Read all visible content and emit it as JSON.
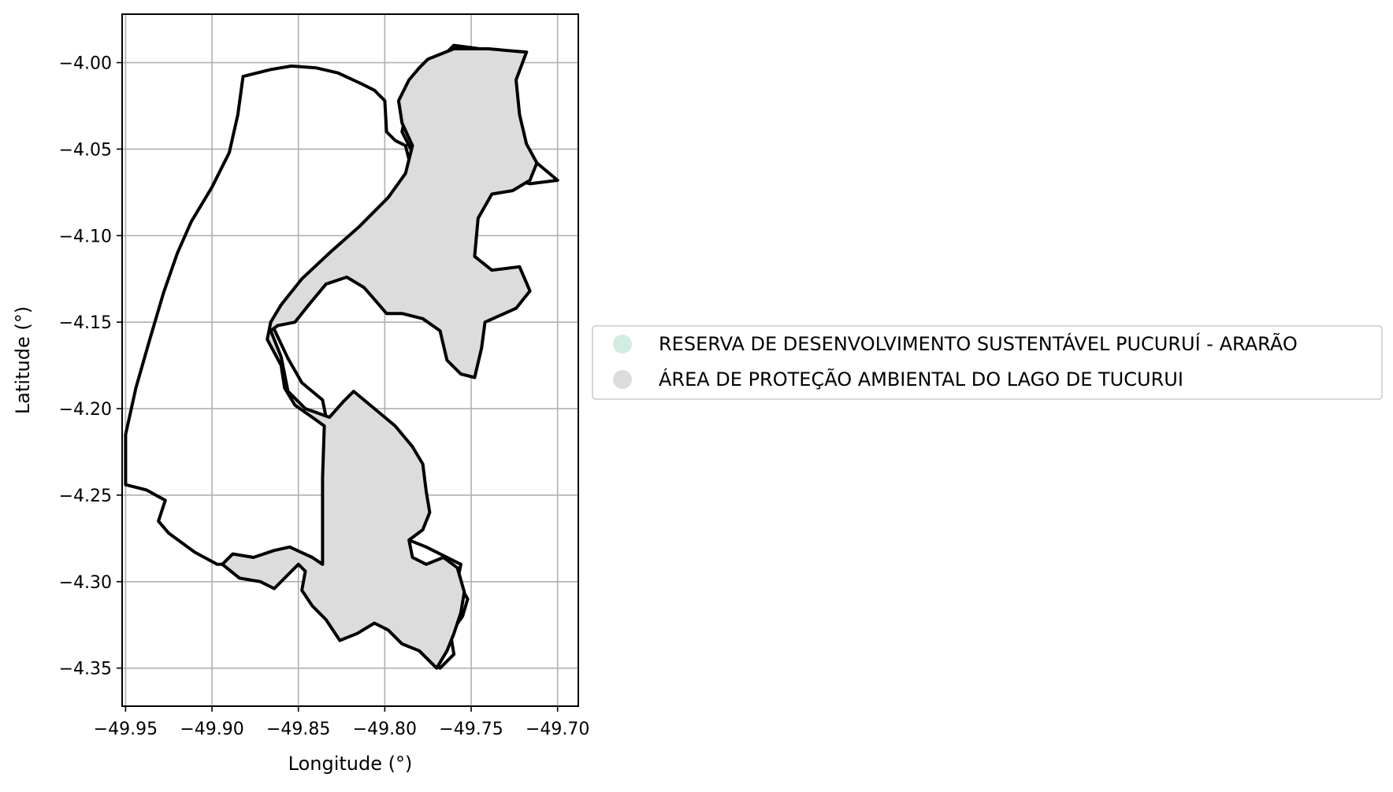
{
  "chart_data": {
    "type": "map",
    "xlabel": "Longitude (°)",
    "ylabel": "Latitude (°)",
    "xlim": [
      -49.952,
      -49.688
    ],
    "ylim": [
      -4.372,
      -3.972
    ],
    "x_ticks": [
      -49.95,
      -49.9,
      -49.85,
      -49.8,
      -49.75,
      -49.7
    ],
    "x_tick_labels": [
      "−49.95",
      "−49.90",
      "−49.85",
      "−49.80",
      "−49.75",
      "−49.70"
    ],
    "y_ticks": [
      -4.0,
      -4.05,
      -4.1,
      -4.15,
      -4.2,
      -4.25,
      -4.3,
      -4.35
    ],
    "y_tick_labels": [
      "−4.00",
      "−4.05",
      "−4.10",
      "−4.15",
      "−4.20",
      "−4.25",
      "−4.30",
      "−4.35"
    ],
    "grid": true,
    "legend_position": "right",
    "legend": [
      {
        "label": "RESERVA DE DESENVOLVIMENTO SUSTENTÁVEL PUCURUÍ - ARARÃO",
        "color": "#cfeee0"
      },
      {
        "label": "ÁREA DE PROTEÇÃO AMBIENTAL DO LAGO DE TUCURUI",
        "color": "#dcdcdc"
      }
    ],
    "areas": [
      {
        "name": "RESERVA DE DESENVOLVIMENTO SUSTENTÁVEL PUCURUÍ - ARARÃO",
        "color": "#cfeee0",
        "boundary": [
          [
            -49.76,
            -3.99
          ],
          [
            -49.745,
            -3.992
          ],
          [
            -49.718,
            -3.994
          ],
          [
            -49.735,
            -4.01
          ],
          [
            -49.745,
            -4.028
          ],
          [
            -49.732,
            -4.042
          ],
          [
            -49.718,
            -4.048
          ],
          [
            -49.712,
            -4.058
          ],
          [
            -49.7,
            -4.068
          ],
          [
            -49.716,
            -4.07
          ],
          [
            -49.735,
            -4.065
          ],
          [
            -49.755,
            -4.064
          ],
          [
            -49.772,
            -4.06
          ],
          [
            -49.786,
            -4.056
          ],
          [
            -49.788,
            -4.048
          ],
          [
            -49.794,
            -4.045
          ],
          [
            -49.799,
            -4.04
          ],
          [
            -49.8,
            -4.022
          ],
          [
            -49.806,
            -4.016
          ],
          [
            -49.814,
            -4.012
          ],
          [
            -49.827,
            -4.006
          ],
          [
            -49.84,
            -4.003
          ],
          [
            -49.854,
            -4.002
          ],
          [
            -49.866,
            -4.004
          ],
          [
            -49.882,
            -4.008
          ],
          [
            -49.885,
            -4.03
          ],
          [
            -49.89,
            -4.052
          ],
          [
            -49.9,
            -4.072
          ],
          [
            -49.912,
            -4.092
          ],
          [
            -49.92,
            -4.11
          ],
          [
            -49.928,
            -4.133
          ],
          [
            -49.936,
            -4.16
          ],
          [
            -49.944,
            -4.188
          ],
          [
            -49.95,
            -4.215
          ],
          [
            -49.95,
            -4.244
          ],
          [
            -49.938,
            -4.247
          ],
          [
            -49.927,
            -4.253
          ],
          [
            -49.931,
            -4.265
          ],
          [
            -49.925,
            -4.272
          ],
          [
            -49.91,
            -4.283
          ],
          [
            -49.897,
            -4.29
          ],
          [
            -49.88,
            -4.29
          ],
          [
            -49.858,
            -4.287
          ],
          [
            -49.848,
            -4.284
          ],
          [
            -49.842,
            -4.288
          ],
          [
            -49.837,
            -4.291
          ],
          [
            -49.83,
            -4.296
          ],
          [
            -49.824,
            -4.305
          ],
          [
            -49.815,
            -4.311
          ],
          [
            -49.81,
            -4.32
          ],
          [
            -49.8,
            -4.325
          ],
          [
            -49.79,
            -4.33
          ],
          [
            -49.782,
            -4.338
          ],
          [
            -49.775,
            -4.345
          ],
          [
            -49.768,
            -4.35
          ],
          [
            -49.76,
            -4.342
          ],
          [
            -49.762,
            -4.33
          ],
          [
            -49.755,
            -4.32
          ],
          [
            -49.752,
            -4.31
          ],
          [
            -49.758,
            -4.3
          ],
          [
            -49.756,
            -4.29
          ],
          [
            -49.766,
            -4.285
          ],
          [
            -49.776,
            -4.28
          ],
          [
            -49.786,
            -4.276
          ],
          [
            -49.794,
            -4.275
          ],
          [
            -49.8,
            -4.262
          ],
          [
            -49.81,
            -4.252
          ],
          [
            -49.818,
            -4.242
          ],
          [
            -49.826,
            -4.232
          ],
          [
            -49.831,
            -4.22
          ],
          [
            -49.833,
            -4.21
          ],
          [
            -49.836,
            -4.195
          ],
          [
            -49.848,
            -4.185
          ],
          [
            -49.856,
            -4.171
          ],
          [
            -49.865,
            -4.152
          ],
          [
            -49.858,
            -4.145
          ],
          [
            -49.85,
            -4.135
          ],
          [
            -49.836,
            -4.12
          ],
          [
            -49.816,
            -4.105
          ],
          [
            -49.8,
            -4.09
          ],
          [
            -49.786,
            -4.075
          ],
          [
            -49.78,
            -4.056
          ],
          [
            -49.785,
            -4.05
          ],
          [
            -49.79,
            -4.04
          ],
          [
            -49.787,
            -4.025
          ],
          [
            -49.778,
            -4.012
          ],
          [
            -49.77,
            -4.003
          ],
          [
            -49.765,
            -3.995
          ],
          [
            -49.76,
            -3.99
          ]
        ]
      },
      {
        "name": "ÁREA DE PROTEÇÃO AMBIENTAL DO LAGO DE TUCURUI",
        "color": "#dcdcdc",
        "boundary": [
          [
            -49.775,
            -3.998
          ],
          [
            -49.76,
            -3.992
          ],
          [
            -49.74,
            -3.992
          ],
          [
            -49.718,
            -3.994
          ],
          [
            -49.724,
            -4.01
          ],
          [
            -49.722,
            -4.03
          ],
          [
            -49.718,
            -4.047
          ],
          [
            -49.712,
            -4.058
          ],
          [
            -49.716,
            -4.068
          ],
          [
            -49.726,
            -4.074
          ],
          [
            -49.738,
            -4.076
          ],
          [
            -49.746,
            -4.09
          ],
          [
            -49.748,
            -4.112
          ],
          [
            -49.738,
            -4.12
          ],
          [
            -49.722,
            -4.118
          ],
          [
            -49.716,
            -4.132
          ],
          [
            -49.724,
            -4.142
          ],
          [
            -49.742,
            -4.15
          ],
          [
            -49.744,
            -4.165
          ],
          [
            -49.748,
            -4.182
          ],
          [
            -49.756,
            -4.18
          ],
          [
            -49.764,
            -4.172
          ],
          [
            -49.768,
            -4.155
          ],
          [
            -49.778,
            -4.148
          ],
          [
            -49.79,
            -4.145
          ],
          [
            -49.799,
            -4.145
          ],
          [
            -49.805,
            -4.138
          ],
          [
            -49.812,
            -4.13
          ],
          [
            -49.822,
            -4.124
          ],
          [
            -49.834,
            -4.128
          ],
          [
            -49.844,
            -4.14
          ],
          [
            -49.852,
            -4.15
          ],
          [
            -49.862,
            -4.152
          ],
          [
            -49.866,
            -4.155
          ],
          [
            -49.86,
            -4.17
          ],
          [
            -49.856,
            -4.19
          ],
          [
            -49.846,
            -4.2
          ],
          [
            -49.832,
            -4.205
          ],
          [
            -49.824,
            -4.196
          ],
          [
            -49.818,
            -4.19
          ],
          [
            -49.806,
            -4.2
          ],
          [
            -49.794,
            -4.21
          ],
          [
            -49.784,
            -4.222
          ],
          [
            -49.778,
            -4.232
          ],
          [
            -49.776,
            -4.248
          ],
          [
            -49.774,
            -4.26
          ],
          [
            -49.778,
            -4.27
          ],
          [
            -49.786,
            -4.276
          ],
          [
            -49.784,
            -4.286
          ],
          [
            -49.776,
            -4.29
          ],
          [
            -49.766,
            -4.286
          ],
          [
            -49.758,
            -4.292
          ],
          [
            -49.754,
            -4.306
          ],
          [
            -49.756,
            -4.318
          ],
          [
            -49.76,
            -4.33
          ],
          [
            -49.764,
            -4.34
          ],
          [
            -49.77,
            -4.35
          ],
          [
            -49.78,
            -4.34
          ],
          [
            -49.79,
            -4.336
          ],
          [
            -49.798,
            -4.328
          ],
          [
            -49.806,
            -4.324
          ],
          [
            -49.816,
            -4.33
          ],
          [
            -49.826,
            -4.334
          ],
          [
            -49.834,
            -4.322
          ],
          [
            -49.842,
            -4.314
          ],
          [
            -49.848,
            -4.305
          ],
          [
            -49.846,
            -4.294
          ],
          [
            -49.85,
            -4.29
          ],
          [
            -49.856,
            -4.296
          ],
          [
            -49.864,
            -4.304
          ],
          [
            -49.872,
            -4.3
          ],
          [
            -49.884,
            -4.298
          ],
          [
            -49.894,
            -4.29
          ],
          [
            -49.888,
            -4.284
          ],
          [
            -49.876,
            -4.286
          ],
          [
            -49.864,
            -4.282
          ],
          [
            -49.855,
            -4.28
          ],
          [
            -49.842,
            -4.286
          ],
          [
            -49.836,
            -4.29
          ],
          [
            -49.836,
            -4.275
          ],
          [
            -49.836,
            -4.24
          ],
          [
            -49.835,
            -4.21
          ],
          [
            -49.842,
            -4.205
          ],
          [
            -49.852,
            -4.198
          ],
          [
            -49.858,
            -4.188
          ],
          [
            -49.86,
            -4.175
          ],
          [
            -49.868,
            -4.16
          ],
          [
            -49.866,
            -4.15
          ],
          [
            -49.86,
            -4.14
          ],
          [
            -49.848,
            -4.125
          ],
          [
            -49.832,
            -4.11
          ],
          [
            -49.815,
            -4.095
          ],
          [
            -49.798,
            -4.078
          ],
          [
            -49.788,
            -4.064
          ],
          [
            -49.784,
            -4.048
          ],
          [
            -49.79,
            -4.035
          ],
          [
            -49.792,
            -4.022
          ],
          [
            -49.786,
            -4.01
          ],
          [
            -49.78,
            -4.003
          ],
          [
            -49.775,
            -3.998
          ]
        ]
      }
    ]
  }
}
